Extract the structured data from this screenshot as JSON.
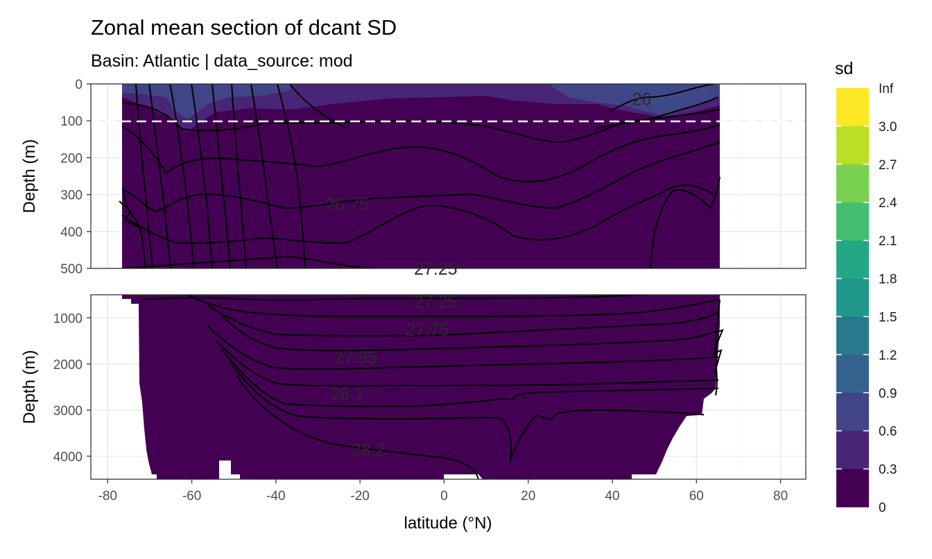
{
  "chart_data": {
    "type": "heatmap",
    "title": "Zonal mean section of dcant SD",
    "subtitle": "Basin: Atlantic | data_source: mod",
    "xlabel": "latitude (°N)",
    "ylabel": "Depth (m)",
    "x_ticks": [
      -80,
      -60,
      -40,
      -20,
      0,
      20,
      40,
      60,
      80
    ],
    "xlim": [
      -84,
      86
    ],
    "panels": [
      {
        "name": "upper",
        "ylim": [
          0,
          500
        ],
        "y_ticks": [
          0,
          100,
          200,
          300,
          400,
          500
        ],
        "dashed_line_depth": 100
      },
      {
        "name": "lower",
        "ylim": [
          500,
          4500
        ],
        "y_ticks": [
          1000,
          2000,
          3000,
          4000
        ]
      }
    ],
    "legend": {
      "title": "sd",
      "position": "right",
      "breaks": [
        "Inf",
        "3.0",
        "2.7",
        "2.4",
        "2.1",
        "1.8",
        "1.5",
        "1.2",
        "0.9",
        "0.6",
        "0.3",
        "0"
      ],
      "colors": [
        "#FDE725",
        "#BBDF27",
        "#7AD151",
        "#43BF71",
        "#22A884",
        "#1F988B",
        "#2A788E",
        "#33638D",
        "#414487",
        "#482576",
        "#440154"
      ]
    },
    "contour_labels": [
      {
        "text": "26",
        "x": 47,
        "y": 40,
        "panel": "upper"
      },
      {
        "text": "26.75",
        "x": -23,
        "y": 325,
        "panel": "upper"
      },
      {
        "text": "27.25",
        "x": -2,
        "y": 500,
        "panel": "upper"
      },
      {
        "text": "27.25",
        "x": -2,
        "y": 650,
        "panel": "lower"
      },
      {
        "text": "27.75",
        "x": -4,
        "y": 1250,
        "panel": "lower"
      },
      {
        "text": "27.95",
        "x": -21,
        "y": 1850,
        "panel": "lower"
      },
      {
        "text": "28.1",
        "x": -23,
        "y": 2650,
        "panel": "lower"
      },
      {
        "text": "28.2",
        "x": -18,
        "y": 3850,
        "panel": "lower"
      }
    ]
  }
}
